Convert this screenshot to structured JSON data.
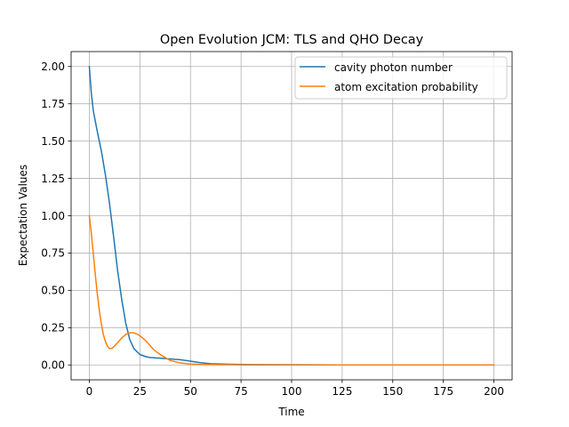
{
  "chart_data": {
    "type": "line",
    "title": "Open Evolution JCM: TLS and QHO Decay",
    "xlabel": "Time",
    "ylabel": "Expectation Values",
    "xlim": [
      -9,
      209
    ],
    "ylim": [
      -0.1,
      2.1
    ],
    "xticks": [
      0,
      25,
      50,
      75,
      100,
      125,
      150,
      175,
      200
    ],
    "yticks": [
      0.0,
      0.25,
      0.5,
      0.75,
      1.0,
      1.25,
      1.5,
      1.75,
      2.0
    ],
    "xtick_labels": [
      "0",
      "25",
      "50",
      "75",
      "100",
      "125",
      "150",
      "175",
      "200"
    ],
    "ytick_labels": [
      "0.00",
      "0.25",
      "0.50",
      "0.75",
      "1.00",
      "1.25",
      "1.50",
      "1.75",
      "2.00"
    ],
    "grid": true,
    "legend_position": "top-right",
    "series": [
      {
        "name": "cavity photon number",
        "color": "#1f77b4",
        "x": [
          0,
          1,
          2,
          4,
          6,
          8,
          10,
          12,
          14,
          16,
          18,
          20,
          22,
          25,
          28,
          30,
          35,
          40,
          45,
          50,
          55,
          60,
          70,
          80,
          100,
          125,
          150,
          175,
          200
        ],
        "y": [
          2.0,
          1.82,
          1.7,
          1.56,
          1.43,
          1.27,
          1.08,
          0.86,
          0.63,
          0.44,
          0.28,
          0.17,
          0.11,
          0.07,
          0.055,
          0.05,
          0.045,
          0.04,
          0.035,
          0.025,
          0.015,
          0.008,
          0.004,
          0.002,
          0.001,
          0.0,
          0.0,
          0.0,
          0.0
        ]
      },
      {
        "name": "atom excitation probability",
        "color": "#ff7f0e",
        "x": [
          0,
          1,
          2,
          3,
          4,
          5,
          6,
          7,
          8,
          9,
          10,
          11,
          12,
          13,
          14,
          16,
          18,
          20,
          22,
          24,
          26,
          28,
          30,
          32,
          35,
          38,
          40,
          45,
          50,
          55,
          60,
          70,
          80,
          100,
          125,
          150,
          175,
          200
        ],
        "y": [
          1.0,
          0.88,
          0.74,
          0.6,
          0.47,
          0.36,
          0.27,
          0.2,
          0.155,
          0.125,
          0.11,
          0.11,
          0.12,
          0.135,
          0.15,
          0.18,
          0.205,
          0.215,
          0.215,
          0.205,
          0.185,
          0.16,
          0.13,
          0.1,
          0.07,
          0.045,
          0.03,
          0.013,
          0.006,
          0.003,
          0.002,
          0.001,
          0.0,
          0.0,
          0.0,
          0.0,
          0.0,
          0.0
        ]
      }
    ]
  }
}
